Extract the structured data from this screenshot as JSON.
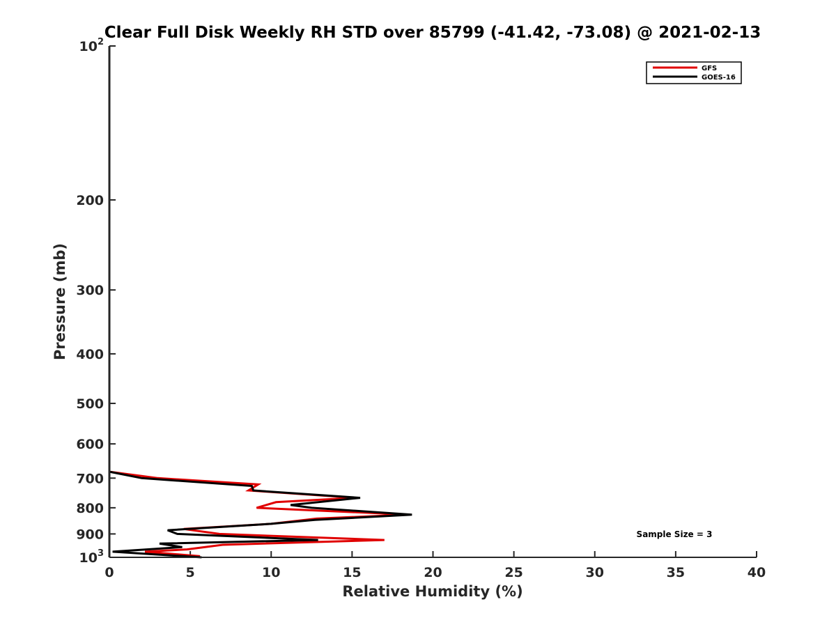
{
  "chart_data": {
    "type": "line",
    "title": "Clear Full Disk Weekly RH STD over 85799 (-41.42, -73.08) @ 2021-02-13",
    "xlabel": "Relative Humidity (%)",
    "ylabel": "Pressure (mb)",
    "xlim": [
      0,
      40
    ],
    "ylim": [
      100,
      1000
    ],
    "y_scale": "log",
    "y_reversed": true,
    "grid": false,
    "legend_position": "top-right",
    "x_ticks": [
      "0",
      "5",
      "10",
      "15",
      "20",
      "25",
      "30",
      "35",
      "40"
    ],
    "y_ticks": [
      {
        "value": 100,
        "base": "10",
        "exp": "2"
      },
      {
        "value": 200,
        "label": "200"
      },
      {
        "value": 300,
        "label": "300"
      },
      {
        "value": 400,
        "label": "400"
      },
      {
        "value": 500,
        "label": "500"
      },
      {
        "value": 600,
        "label": "600"
      },
      {
        "value": 700,
        "label": "700"
      },
      {
        "value": 800,
        "label": "800"
      },
      {
        "value": 900,
        "label": "900"
      },
      {
        "value": 1000,
        "base": "10",
        "exp": "3"
      }
    ],
    "series": [
      {
        "name": "GFS",
        "color": "#e00000",
        "points": [
          [
            0,
            100
          ],
          [
            0,
            680
          ],
          [
            3,
            700
          ],
          [
            9.2,
            720
          ],
          [
            8.6,
            740
          ],
          [
            15.2,
            765
          ],
          [
            10.3,
            780
          ],
          [
            9.1,
            800
          ],
          [
            18.5,
            825
          ],
          [
            12.8,
            840
          ],
          [
            10,
            860
          ],
          [
            4.6,
            880
          ],
          [
            6.8,
            900
          ],
          [
            17,
            925
          ],
          [
            7,
            945
          ],
          [
            4.8,
            965
          ],
          [
            2.2,
            975
          ],
          [
            5.6,
            995
          ]
        ]
      },
      {
        "name": "GOES-16",
        "color": "#000000",
        "points": [
          [
            0,
            100
          ],
          [
            0,
            680
          ],
          [
            2,
            700
          ],
          [
            8.8,
            725
          ],
          [
            8.9,
            740
          ],
          [
            15.5,
            765
          ],
          [
            11.2,
            790
          ],
          [
            12.5,
            800
          ],
          [
            18.7,
            825
          ],
          [
            12.7,
            845
          ],
          [
            10,
            860
          ],
          [
            3.6,
            885
          ],
          [
            4.2,
            900
          ],
          [
            12.9,
            925
          ],
          [
            3.1,
            940
          ],
          [
            4.5,
            955
          ],
          [
            0.2,
            975
          ],
          [
            5.7,
            1000
          ]
        ]
      }
    ],
    "annotations": [
      "Sample Size = 3"
    ]
  }
}
